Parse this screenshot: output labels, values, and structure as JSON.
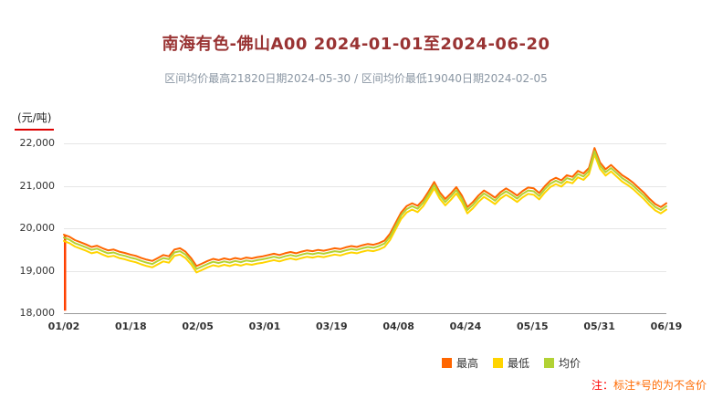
{
  "title": "南海有色-佛山A00 2024-01-01至2024-06-20",
  "subtitle": "区间均价最高21820日期2024-05-30 / 区间均价最低19040日期2024-02-05",
  "y_axis_unit": "(元/吨)",
  "note": {
    "prefix": "注：",
    "text": "标注*号的为不含价"
  },
  "chart_data": {
    "type": "line",
    "title": "南海有色-佛山A00 2024-01-01至2024-06-20",
    "xlabel": "",
    "ylabel": "元/吨",
    "ylim": [
      18000,
      22000
    ],
    "grid": true,
    "legend_position": "bottom",
    "y_ticks": [
      22000,
      21000,
      20000,
      19000,
      18000
    ],
    "y_tick_labels": [
      "22,000",
      "21,000",
      "20,000",
      "19,000",
      "18,000"
    ],
    "x_tick_labels": [
      "01/02",
      "01/18",
      "02/05",
      "03/01",
      "03/19",
      "04/08",
      "04/24",
      "05/15",
      "05/31",
      "06/19"
    ],
    "marker": {
      "type": "vertical-line",
      "at_index": 0,
      "top": 19850,
      "bottom": 18060,
      "color": "#ff4000"
    },
    "series": [
      {
        "key": "high",
        "name": "最高",
        "color": "#ff6600",
        "values": [
          19850,
          19800,
          19720,
          19670,
          19620,
          19560,
          19590,
          19530,
          19480,
          19500,
          19450,
          19420,
          19380,
          19350,
          19300,
          19260,
          19230,
          19300,
          19370,
          19340,
          19500,
          19530,
          19450,
          19300,
          19110,
          19170,
          19230,
          19280,
          19250,
          19290,
          19260,
          19300,
          19270,
          19310,
          19290,
          19320,
          19340,
          19370,
          19400,
          19370,
          19410,
          19440,
          19410,
          19450,
          19480,
          19460,
          19490,
          19470,
          19500,
          19530,
          19510,
          19550,
          19580,
          19560,
          19600,
          19630,
          19610,
          19650,
          19710,
          19870,
          20120,
          20370,
          20520,
          20590,
          20530,
          20670,
          20870,
          21090,
          20850,
          20690,
          20820,
          20970,
          20770,
          20500,
          20620,
          20770,
          20890,
          20810,
          20720,
          20850,
          20940,
          20860,
          20770,
          20880,
          20960,
          20940,
          20830,
          20990,
          21120,
          21190,
          21130,
          21250,
          21210,
          21350,
          21290,
          21420,
          21890,
          21550,
          21390,
          21490,
          21370,
          21250,
          21170,
          21070,
          20950,
          20830,
          20690,
          20570,
          20500,
          20590
        ]
      },
      {
        "key": "low",
        "name": "最低",
        "color": "#ffd400",
        "values": [
          19700,
          19650,
          19570,
          19520,
          19470,
          19410,
          19440,
          19380,
          19330,
          19350,
          19300,
          19270,
          19230,
          19200,
          19150,
          19110,
          19080,
          19150,
          19220,
          19190,
          19350,
          19380,
          19300,
          19150,
          18960,
          19020,
          19080,
          19130,
          19100,
          19140,
          19110,
          19150,
          19120,
          19160,
          19140,
          19170,
          19190,
          19220,
          19250,
          19220,
          19260,
          19290,
          19260,
          19300,
          19330,
          19310,
          19340,
          19320,
          19350,
          19380,
          19360,
          19400,
          19430,
          19410,
          19450,
          19480,
          19460,
          19500,
          19560,
          19720,
          19970,
          20220,
          20370,
          20440,
          20380,
          20520,
          20720,
          20940,
          20700,
          20540,
          20670,
          20820,
          20620,
          20350,
          20470,
          20620,
          20740,
          20660,
          20570,
          20700,
          20790,
          20710,
          20620,
          20730,
          20810,
          20790,
          20680,
          20840,
          20970,
          21040,
          20980,
          21100,
          21060,
          21200,
          21140,
          21270,
          21740,
          21400,
          21240,
          21340,
          21220,
          21100,
          21020,
          20920,
          20800,
          20680,
          20540,
          20420,
          20350,
          20440
        ]
      },
      {
        "key": "avg",
        "name": "均价",
        "color": "#b2d235",
        "values": [
          19780,
          19730,
          19650,
          19600,
          19550,
          19490,
          19520,
          19460,
          19410,
          19430,
          19380,
          19350,
          19310,
          19280,
          19230,
          19190,
          19160,
          19230,
          19300,
          19270,
          19430,
          19460,
          19380,
          19230,
          19040,
          19100,
          19160,
          19210,
          19180,
          19220,
          19190,
          19230,
          19200,
          19240,
          19220,
          19250,
          19270,
          19300,
          19330,
          19300,
          19340,
          19370,
          19340,
          19380,
          19410,
          19390,
          19420,
          19400,
          19430,
          19460,
          19440,
          19480,
          19510,
          19490,
          19530,
          19560,
          19540,
          19580,
          19640,
          19800,
          20050,
          20300,
          20450,
          20520,
          20460,
          20600,
          20800,
          21020,
          20780,
          20620,
          20750,
          20900,
          20700,
          20430,
          20550,
          20700,
          20820,
          20740,
          20650,
          20780,
          20870,
          20790,
          20700,
          20810,
          20890,
          20870,
          20760,
          20920,
          21050,
          21120,
          21060,
          21180,
          21140,
          21280,
          21220,
          21350,
          21820,
          21480,
          21320,
          21420,
          21300,
          21180,
          21100,
          21000,
          20880,
          20760,
          20620,
          20500,
          20430,
          20520
        ]
      }
    ]
  }
}
